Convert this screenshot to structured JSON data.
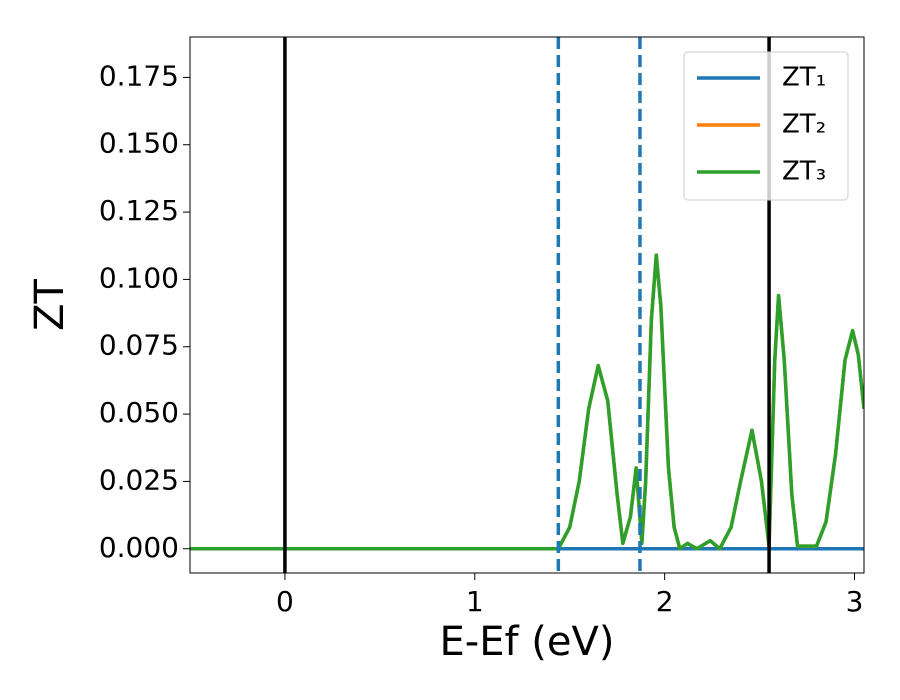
{
  "chart_data": {
    "type": "line",
    "ylabel": "ZT",
    "xlabel": "E-Ef (eV)",
    "xlim": [
      -0.5,
      3.05
    ],
    "ylim": [
      -0.009,
      0.19
    ],
    "xticks": [
      0,
      1,
      2,
      3
    ],
    "yticks": [
      {
        "value": 0,
        "label": "0.000"
      },
      {
        "value": 0.025,
        "label": "0.025"
      },
      {
        "value": 0.05,
        "label": "0.050"
      },
      {
        "value": 0.075,
        "label": "0.075"
      },
      {
        "value": 0.1,
        "label": "0.100"
      },
      {
        "value": 0.125,
        "label": "0.125"
      },
      {
        "value": 0.15,
        "label": "0.150"
      },
      {
        "value": 0.175,
        "label": "0.175"
      }
    ],
    "legend": "upper right",
    "vlines": [
      {
        "x": 0,
        "color": "#000000",
        "dashed": false
      },
      {
        "x": 1.44,
        "color": "#1f77b4",
        "dashed": true
      },
      {
        "x": 1.87,
        "color": "#1f77b4",
        "dashed": true
      },
      {
        "x": 2.55,
        "color": "#000000",
        "dashed": false
      }
    ],
    "x": [
      -0.5,
      0,
      0.5,
      1.0,
      1.4,
      1.44,
      1.5,
      1.55,
      1.6,
      1.65,
      1.7,
      1.75,
      1.78,
      1.82,
      1.85,
      1.88,
      1.9,
      1.93,
      1.956,
      1.98,
      2.02,
      2.05,
      2.08,
      2.12,
      2.17,
      2.24,
      2.29,
      2.35,
      2.4,
      2.46,
      2.51,
      2.55,
      2.58,
      2.6,
      2.63,
      2.67,
      2.7,
      2.8,
      2.85,
      2.9,
      2.95,
      2.99,
      3.02,
      3.05
    ],
    "series": [
      {
        "name": "ZT₁",
        "color": "#1f77b4",
        "values": [
          0,
          0,
          0,
          0,
          0,
          0,
          0,
          0,
          0,
          0,
          0,
          0,
          0,
          0,
          0,
          0,
          0,
          0,
          0,
          0,
          0,
          0,
          0,
          0,
          0,
          0,
          0,
          0,
          0,
          0,
          0,
          0,
          0,
          0,
          0,
          0,
          0,
          0,
          0,
          0,
          0,
          0,
          0,
          0
        ]
      },
      {
        "name": "ZT₂",
        "color": "#ff7f0e",
        "values": [
          0,
          0,
          0,
          0,
          0,
          0,
          0.008,
          0.025,
          0.052,
          0.068,
          0.055,
          0.02,
          0.002,
          0.012,
          0.03,
          0.002,
          0.025,
          0.085,
          0.109,
          0.09,
          0.03,
          0.008,
          0,
          0.002,
          0,
          0.003,
          0,
          0.008,
          0.025,
          0.044,
          0.025,
          0.001,
          0.07,
          0.094,
          0.07,
          0.02,
          0.001,
          0.001,
          0.01,
          0.035,
          0.07,
          0.081,
          0.072,
          0.052
        ]
      },
      {
        "name": "ZT₃",
        "color": "#2ca02c",
        "values": [
          0,
          0,
          0,
          0,
          0,
          0,
          0.008,
          0.025,
          0.052,
          0.068,
          0.055,
          0.02,
          0.002,
          0.012,
          0.03,
          0.002,
          0.025,
          0.085,
          0.109,
          0.09,
          0.03,
          0.008,
          0,
          0.002,
          0,
          0.003,
          0,
          0.008,
          0.025,
          0.044,
          0.025,
          0.001,
          0.07,
          0.094,
          0.07,
          0.02,
          0.001,
          0.001,
          0.01,
          0.035,
          0.07,
          0.081,
          0.072,
          0.052
        ]
      }
    ]
  }
}
